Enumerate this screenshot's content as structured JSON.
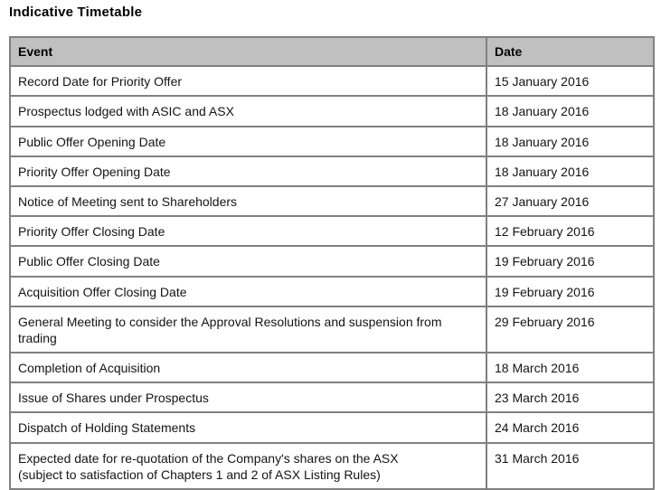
{
  "title": "Indicative Timetable",
  "colors": {
    "header_bg": "#c0c0c0",
    "border": "#808080"
  },
  "table": {
    "headers": [
      "Event",
      "Date"
    ],
    "rows": [
      {
        "event": "Record Date for Priority Offer",
        "date": "15 January 2016"
      },
      {
        "event": "Prospectus lodged with ASIC and ASX",
        "date": "18 January 2016"
      },
      {
        "event": "Public Offer Opening Date",
        "date": "18 January 2016"
      },
      {
        "event": "Priority Offer Opening Date",
        "date": "18 January 2016"
      },
      {
        "event": "Notice of Meeting sent to Shareholders",
        "date": "27 January 2016"
      },
      {
        "event": "Priority Offer Closing Date",
        "date": "12 February 2016"
      },
      {
        "event": "Public Offer Closing Date",
        "date": "19 February 2016"
      },
      {
        "event": "Acquisition Offer Closing Date",
        "date": "19 February 2016"
      },
      {
        "event": "General Meeting to consider the Approval Resolutions and suspension from trading",
        "date": "29 February 2016"
      },
      {
        "event": "Completion of Acquisition",
        "date": "18 March 2016"
      },
      {
        "event": "Issue of Shares under Prospectus",
        "date": "23 March 2016"
      },
      {
        "event": "Dispatch of Holding Statements",
        "date": "24 March 2016"
      },
      {
        "event": "Expected date for re-quotation of the Company's shares on the ASX\n(subject to satisfaction of Chapters 1 and 2 of ASX Listing Rules)",
        "date": "31 March 2016"
      }
    ]
  }
}
